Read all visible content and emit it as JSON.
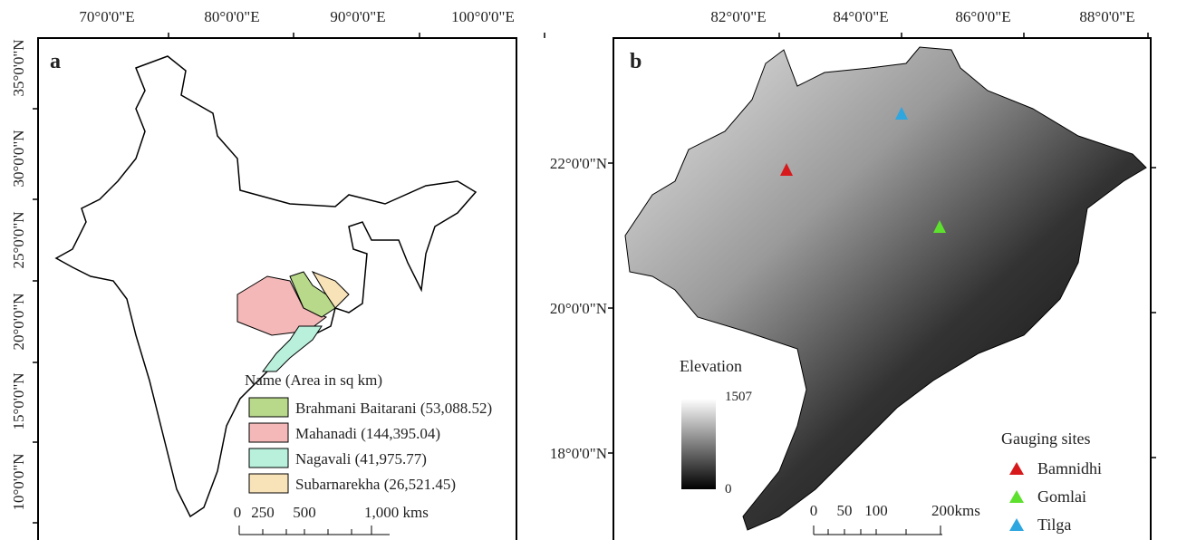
{
  "panel_a": {
    "label": "a",
    "lon_ticks": [
      "70°0'0\"E",
      "80°0'0\"E",
      "90°0'0\"E",
      "100°0'0\"E"
    ],
    "lat_ticks": [
      "35°0'0\"N",
      "30°0'0\"N",
      "25°0'0\"N",
      "20°0'0\"N",
      "15°0'0\"N",
      "10°0'0\"N"
    ],
    "legend_title": "Name (Area in sq km)",
    "legend_items": [
      "Brahmani Baitarani (53,088.52)",
      "Mahanadi (144,395.04)",
      "Nagavali (41,975.77)",
      "Subarnarekha (26,521.45)"
    ],
    "scale_labels": [
      "0",
      "250",
      "500",
      "1,000 kms"
    ]
  },
  "panel_b": {
    "label": "b",
    "lon_ticks": [
      "82°0'0\"E",
      "84°0'0\"E",
      "86°0'0\"E",
      "88°0'0\"E"
    ],
    "lat_ticks": [
      "22°0'0\"N",
      "20°0'0\"N",
      "18°0'0\"N"
    ],
    "elevation_title": "Elevation",
    "elevation_max": "1507",
    "elevation_min": "0",
    "gauging_title": "Gauging sites",
    "gauging_items": [
      "Bamnidhi",
      "Gomlai",
      "Tilga"
    ],
    "scale_labels": [
      "0",
      "50",
      "100",
      "200kms"
    ]
  }
}
